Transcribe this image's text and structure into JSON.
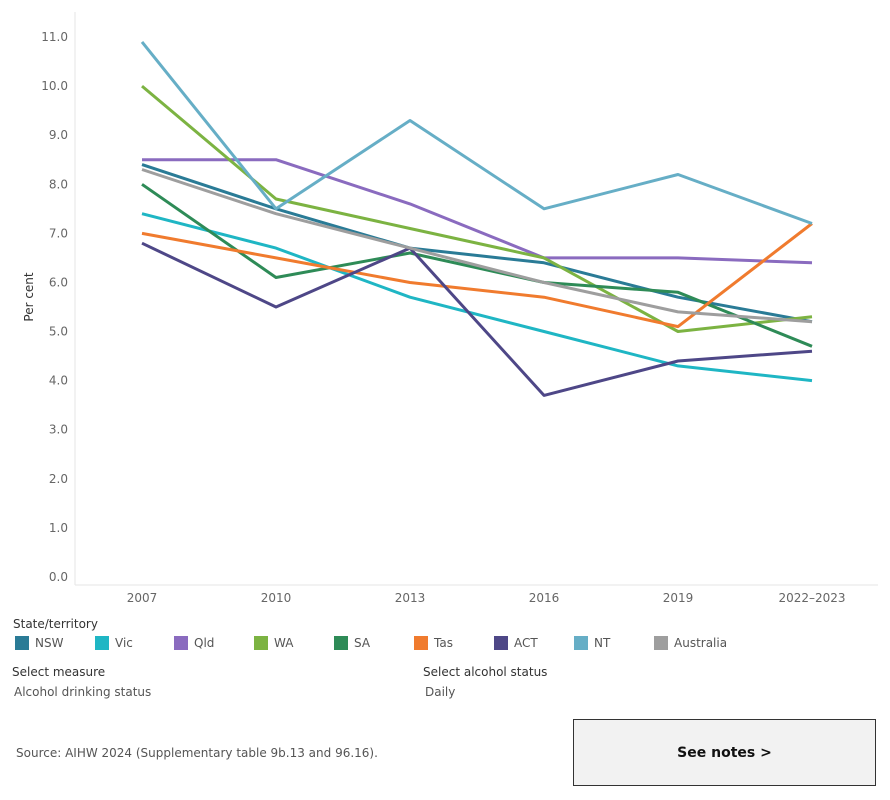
{
  "chart_data": {
    "type": "line",
    "ylabel": "Per cent",
    "xlabel": "",
    "categories": [
      "2007",
      "2010",
      "2013",
      "2016",
      "2019",
      "2022–2023"
    ],
    "ylim": [
      0,
      11.5
    ],
    "yticks": [
      "0.0",
      "1.0",
      "2.0",
      "3.0",
      "4.0",
      "5.0",
      "6.0",
      "7.0",
      "8.0",
      "9.0",
      "10.0",
      "11.0"
    ],
    "grid": false,
    "series": [
      {
        "name": "NSW",
        "color": "#2a7b96",
        "values": [
          8.4,
          7.5,
          6.7,
          6.4,
          5.7,
          5.2
        ]
      },
      {
        "name": "Vic",
        "color": "#1fb6c4",
        "values": [
          7.4,
          6.7,
          5.7,
          5.0,
          4.3,
          4.0
        ]
      },
      {
        "name": "Qld",
        "color": "#8a6bbf",
        "values": [
          8.5,
          8.5,
          7.6,
          6.5,
          6.5,
          6.4
        ]
      },
      {
        "name": "WA",
        "color": "#7cb342",
        "values": [
          10.0,
          7.7,
          7.1,
          6.5,
          5.0,
          5.3
        ]
      },
      {
        "name": "SA",
        "color": "#2e8b57",
        "values": [
          8.0,
          6.1,
          6.6,
          6.0,
          5.8,
          4.7
        ]
      },
      {
        "name": "Tas",
        "color": "#f07b2e",
        "values": [
          7.0,
          6.5,
          6.0,
          5.7,
          5.1,
          7.2
        ]
      },
      {
        "name": "ACT",
        "color": "#4e4787",
        "values": [
          6.8,
          5.5,
          6.7,
          3.7,
          4.4,
          4.6
        ]
      },
      {
        "name": "NT",
        "color": "#66aec6",
        "values": [
          10.9,
          7.5,
          9.3,
          7.5,
          8.2,
          7.2
        ]
      },
      {
        "name": "Australia",
        "color": "#9e9e9e",
        "values": [
          8.3,
          7.4,
          6.7,
          6.0,
          5.4,
          5.2
        ]
      }
    ]
  },
  "legend": {
    "title": "State/territory"
  },
  "controls": {
    "measure": {
      "label": "Select measure",
      "value": "Alcohol drinking status"
    },
    "status": {
      "label": "Select alcohol status",
      "value": "Daily"
    }
  },
  "source": "Source: AIHW 2024 (Supplementary table 9b.13 and 96.16).",
  "notes_button": "See notes >"
}
